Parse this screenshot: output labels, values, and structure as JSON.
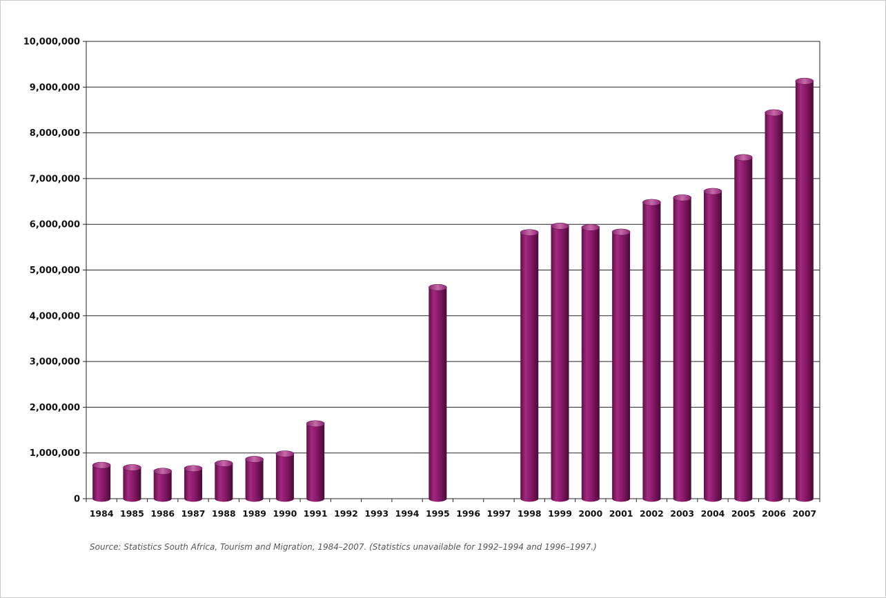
{
  "chart_data": {
    "type": "bar",
    "style": "3d-cylinder",
    "title": "",
    "xlabel": "",
    "ylabel": "",
    "categories": [
      "1984",
      "1985",
      "1986",
      "1987",
      "1988",
      "1989",
      "1990",
      "1991",
      "1992",
      "1993",
      "1994",
      "1995",
      "1996",
      "1997",
      "1998",
      "1999",
      "2000",
      "2001",
      "2002",
      "2003",
      "2004",
      "2005",
      "2006",
      "2007"
    ],
    "series": [
      {
        "values": [
          730000,
          680000,
          600000,
          660000,
          770000,
          860000,
          980000,
          1640000,
          null,
          null,
          null,
          4620000,
          null,
          null,
          5820000,
          5960000,
          5930000,
          5830000,
          6480000,
          6580000,
          6720000,
          7460000,
          8440000,
          9130000
        ]
      }
    ],
    "ylim": [
      0,
      10000000
    ],
    "yticks": [
      "0",
      "1,000,000",
      "2,000,000",
      "3,000,000",
      "4,000,000",
      "5,000,000",
      "6,000,000",
      "7,000,000",
      "8,000,000",
      "9,000,000",
      "10,000,000"
    ],
    "grid": true,
    "legend": "none",
    "bar_color": "#8e1a6e"
  },
  "source_note": "Source: Statistics South Africa, Tourism and Migration, 1984–2007. (Statistics unavailable for 1992–1994 and 1996–1997.)"
}
